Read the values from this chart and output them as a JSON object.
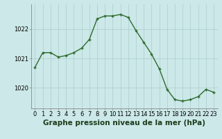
{
  "x": [
    0,
    1,
    2,
    3,
    4,
    5,
    6,
    7,
    8,
    9,
    10,
    11,
    12,
    13,
    14,
    15,
    16,
    17,
    18,
    19,
    20,
    21,
    22,
    23
  ],
  "y": [
    1020.7,
    1021.2,
    1021.2,
    1021.05,
    1021.1,
    1021.2,
    1021.35,
    1021.65,
    1022.35,
    1022.45,
    1022.45,
    1022.5,
    1022.4,
    1021.95,
    1021.55,
    1021.15,
    1020.65,
    1019.95,
    1019.6,
    1019.55,
    1019.6,
    1019.7,
    1019.95,
    1019.85
  ],
  "line_color": "#2d6a2d",
  "marker": "+",
  "bg_color": "#cce8e8",
  "grid_color": "#aacece",
  "xlabel": "Graphe pression niveau de la mer (hPa)",
  "xlabel_fontsize": 7.5,
  "tick_fontsize": 6.0,
  "ylim": [
    1019.3,
    1022.85
  ],
  "yticks": [
    1020,
    1021,
    1022
  ],
  "xlim": [
    -0.5,
    23.5
  ],
  "axis_color": "#888888",
  "linewidth": 1.0,
  "markersize": 3.5,
  "markeredgewidth": 1.0
}
